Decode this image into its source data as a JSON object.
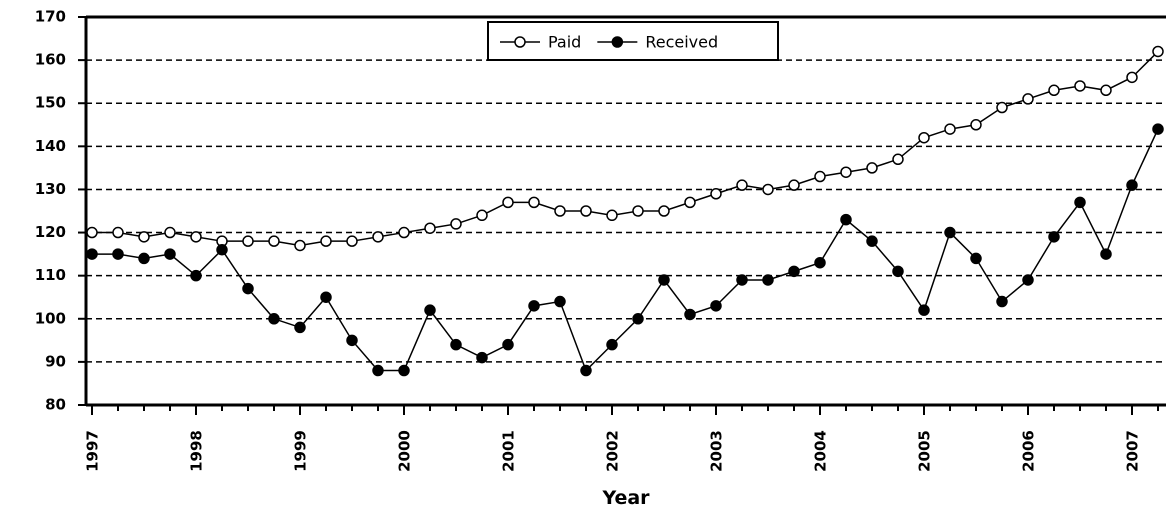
{
  "chart_data": {
    "type": "line",
    "x_label": "Year",
    "categories": [
      "1997",
      null,
      null,
      null,
      "1998",
      null,
      null,
      null,
      "1999",
      null,
      null,
      null,
      "2000",
      null,
      null,
      null,
      "2001",
      null,
      null,
      null,
      "2002",
      null,
      null,
      null,
      "2003",
      null,
      null,
      null,
      "2004",
      null,
      null,
      null,
      "2005",
      null,
      null,
      null,
      "2006",
      null,
      null,
      null,
      "2007",
      null
    ],
    "series": [
      {
        "name": "Paid",
        "color": "#000000",
        "marker": "open",
        "values": [
          120,
          120,
          119,
          120,
          119,
          118,
          118,
          118,
          117,
          118,
          118,
          119,
          120,
          121,
          122,
          124,
          127,
          127,
          125,
          125,
          124,
          125,
          125,
          127,
          129,
          131,
          130,
          131,
          133,
          134,
          135,
          137,
          142,
          144,
          145,
          149,
          151,
          153,
          154,
          153,
          156,
          162
        ]
      },
      {
        "name": "Received",
        "color": "#000000",
        "marker": "filled",
        "values": [
          115,
          115,
          114,
          115,
          110,
          116,
          107,
          100,
          98,
          105,
          95,
          88,
          88,
          102,
          94,
          91,
          94,
          103,
          104,
          88,
          94,
          100,
          109,
          101,
          103,
          109,
          109,
          111,
          113,
          123,
          118,
          111,
          102,
          120,
          114,
          104,
          109,
          119,
          127,
          115,
          131,
          144
        ]
      }
    ],
    "ylim": [
      80,
      170
    ],
    "yticks": [
      80,
      90,
      100,
      110,
      120,
      130,
      140,
      150,
      160,
      170
    ],
    "grid": true,
    "legend": "top"
  }
}
